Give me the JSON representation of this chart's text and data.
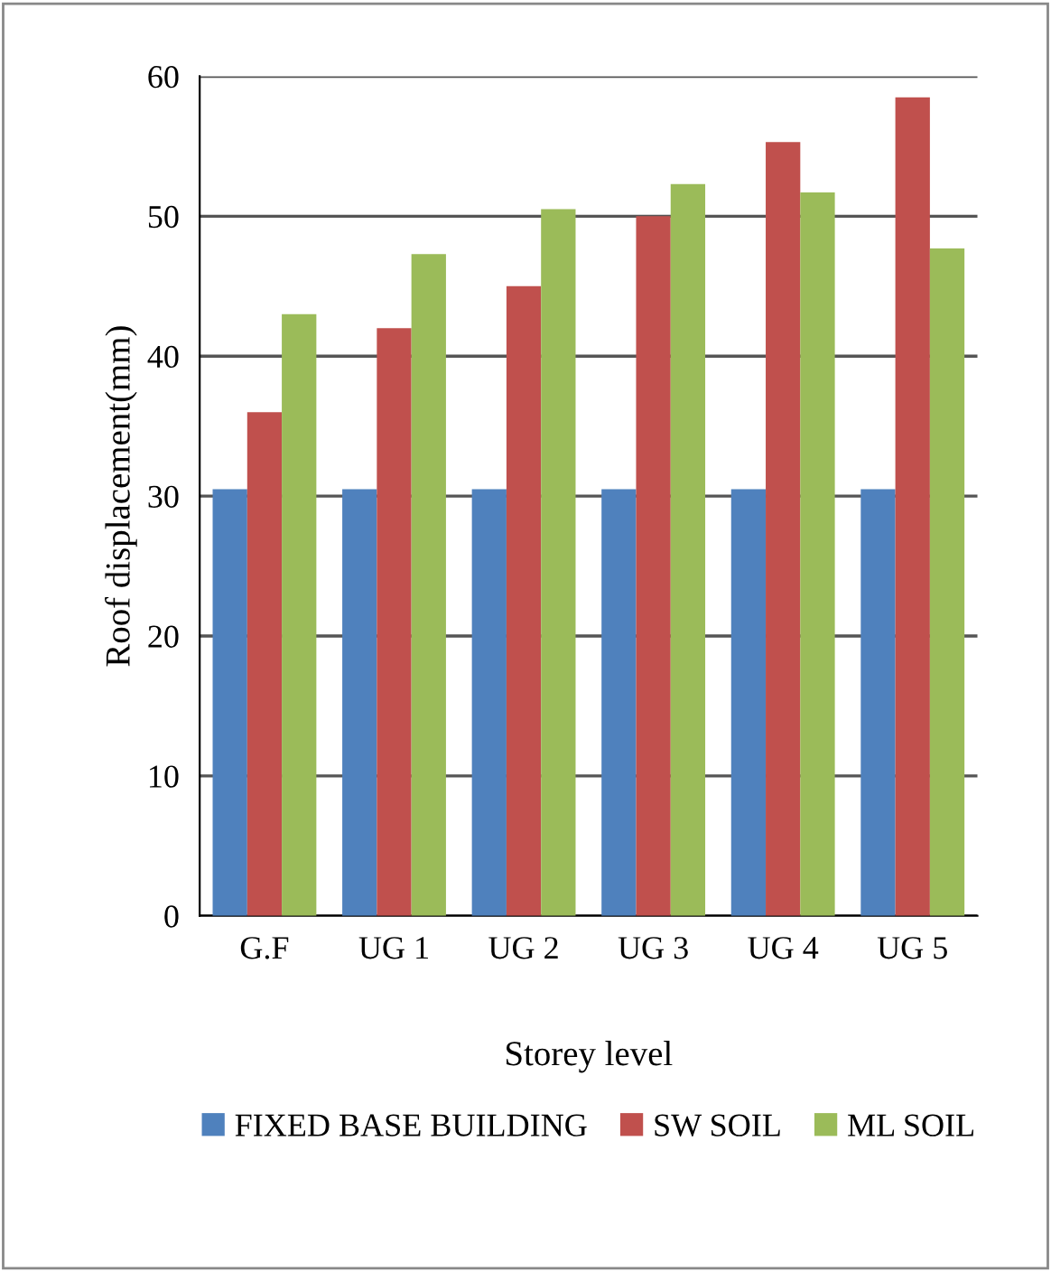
{
  "chart_data": {
    "type": "bar",
    "xlabel": "Storey level",
    "ylabel": "Roof displacement(mm)",
    "categories": [
      "G.F",
      "UG 1",
      "UG 2",
      "UG 3",
      "UG 4",
      "UG 5"
    ],
    "series": [
      {
        "name": "FIXED BASE BUILDING",
        "color": "#4f81bd",
        "values": [
          30.5,
          30.5,
          30.5,
          30.5,
          30.5,
          30.5
        ]
      },
      {
        "name": "SW SOIL",
        "color": "#c0504d",
        "values": [
          36,
          42,
          45,
          50,
          55.3,
          58.5
        ]
      },
      {
        "name": "ML SOIL",
        "color": "#9bbb59",
        "values": [
          43,
          47.3,
          50.5,
          52.3,
          51.7,
          47.7
        ]
      }
    ],
    "ylim": [
      0,
      60
    ],
    "yticks": [
      0,
      10,
      20,
      30,
      40,
      50,
      60
    ],
    "grid": "y",
    "legend": "bottom"
  }
}
